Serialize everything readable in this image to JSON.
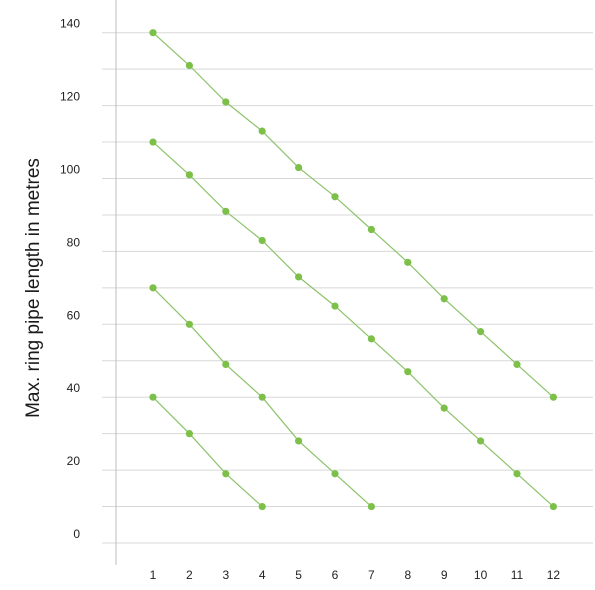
{
  "chart_data": {
    "type": "line",
    "title": "",
    "xlabel": "",
    "ylabel": "Max. ring pipe length in metres",
    "x": [
      1,
      2,
      3,
      4,
      5,
      6,
      7,
      8,
      9,
      10,
      11,
      12
    ],
    "x_tick_labels": [
      "1",
      "2",
      "3",
      "4",
      "5",
      "6",
      "7",
      "8",
      "9",
      "10",
      "11",
      "12"
    ],
    "y_tick_labels": [
      "0",
      "20",
      "40",
      "60",
      "80",
      "100",
      "120",
      "140"
    ],
    "ylim": [
      0,
      140
    ],
    "grid": "horizontal, every 10",
    "legend": "none",
    "series": [
      {
        "x": [
          1,
          2,
          3,
          4
        ],
        "values": [
          40,
          30,
          19,
          10
        ]
      },
      {
        "x": [
          1,
          2,
          3,
          4,
          5,
          6,
          7
        ],
        "values": [
          70,
          60,
          49,
          40,
          28,
          19,
          10
        ]
      },
      {
        "x": [
          1,
          2,
          3,
          4,
          5,
          6,
          7,
          8,
          9,
          10,
          11,
          12
        ],
        "values": [
          110,
          101,
          91,
          83,
          73,
          65,
          56,
          47,
          37,
          28,
          19,
          10
        ]
      },
      {
        "x": [
          1,
          2,
          3,
          4,
          5,
          6,
          7,
          8,
          9,
          10,
          11,
          12
        ],
        "values": [
          140,
          131,
          121,
          113,
          103,
          95,
          86,
          77,
          67,
          58,
          49,
          40
        ]
      }
    ],
    "colors": {
      "line": "#8cc36a",
      "marker": "#7cc04a",
      "grid": "#d8d8d8",
      "axis": "#bdbdbd"
    }
  }
}
